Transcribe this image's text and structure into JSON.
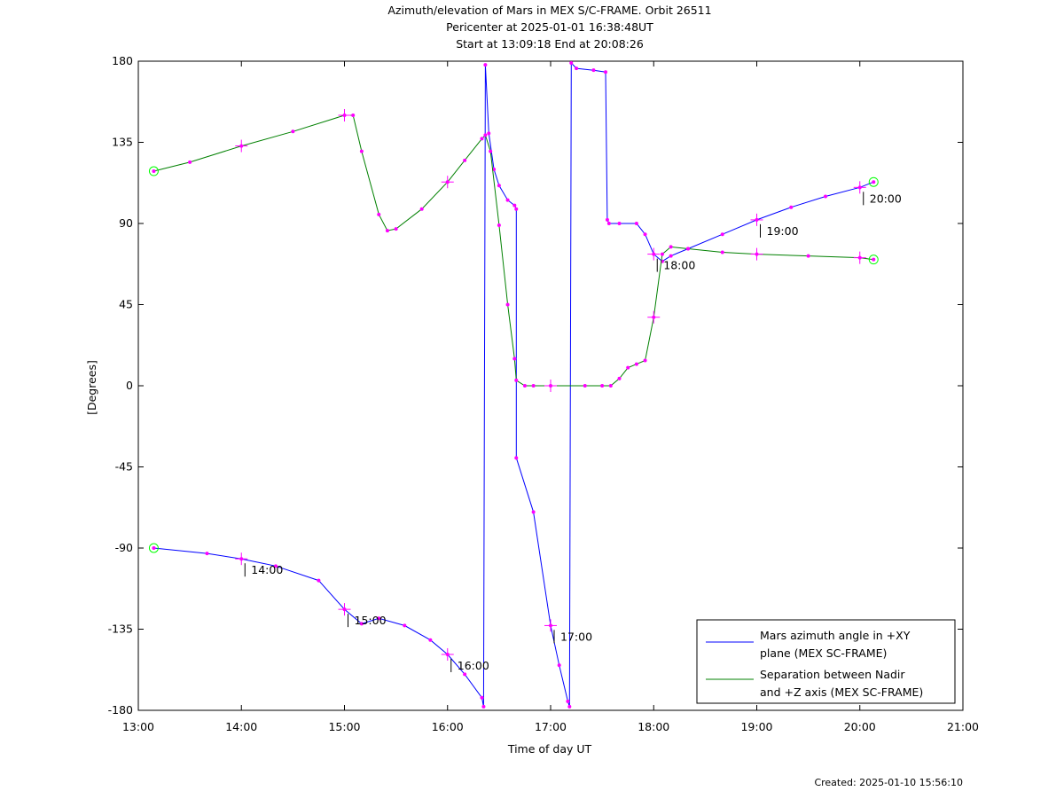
{
  "header": {
    "title": "Azimuth/elevation of Mars in MEX S/C-FRAME.  Orbit 26511",
    "subtitle1": "Pericenter at 2025-01-01 16:38:48UT",
    "subtitle2": "Start at 13:09:18 End at 20:08:26"
  },
  "footer": {
    "created": "Created: 2025-01-10 15:56:10"
  },
  "chart_data": {
    "type": "line",
    "title": "Azimuth/elevation of Mars in MEX S/C-FRAME.  Orbit 26511",
    "xlabel": "Time of day UT",
    "ylabel": "[Degrees]",
    "xlim": [
      "13:00",
      "21:00"
    ],
    "ylim": [
      -180,
      180
    ],
    "x_ticks": [
      "13:00",
      "14:00",
      "15:00",
      "16:00",
      "17:00",
      "18:00",
      "19:00",
      "20:00",
      "21:00"
    ],
    "y_ticks": [
      180,
      135,
      90,
      45,
      0,
      -45,
      -90,
      -135,
      -180
    ],
    "grid": false,
    "legend_position": "bottom-right",
    "colors": {
      "azimuth": "#0000ff",
      "separation": "#008000",
      "markers": "#ff00ff",
      "endpoints": "#00ff00"
    },
    "series": [
      {
        "name": "Mars azimuth angle in +XY plane (MEX SC-FRAME)",
        "legend_lines": [
          "Mars azimuth angle in +XY",
          "plane (MEX SC-FRAME)"
        ],
        "color": "#0000ff",
        "x": [
          "13:09",
          "13:40",
          "14:00",
          "14:20",
          "14:45",
          "15:00",
          "15:10",
          "15:20",
          "15:35",
          "15:50",
          "16:00",
          "16:10",
          "16:20",
          "16:21",
          "16:22",
          "16:24",
          "16:27",
          "16:30",
          "16:35",
          "16:39",
          "16:40",
          "16:40",
          "16:50",
          "17:00",
          "17:05",
          "17:10",
          "17:11",
          "17:12",
          "17:15",
          "17:25",
          "17:32",
          "17:33",
          "17:34",
          "17:40",
          "17:50",
          "17:55",
          "18:00",
          "18:05",
          "18:10",
          "18:20",
          "18:40",
          "19:00",
          "19:20",
          "19:40",
          "20:00",
          "20:08"
        ],
        "y": [
          -90,
          -93,
          -96,
          -100,
          -108,
          -124,
          -132,
          -129,
          -133,
          -141,
          -149,
          -160,
          -173,
          -178,
          178,
          140,
          120,
          111,
          103,
          100,
          98,
          -40,
          -70,
          -133,
          -155,
          -175,
          -178,
          179,
          176,
          175,
          174,
          92,
          90,
          90,
          90,
          84,
          73,
          69,
          72,
          76,
          84,
          92,
          99,
          105,
          110,
          113
        ]
      },
      {
        "name": "Separation between Nadir and +Z axis (MEX SC-FRAME)",
        "legend_lines": [
          "Separation between Nadir",
          "and +Z axis (MEX SC-FRAME)"
        ],
        "color": "#008000",
        "x": [
          "13:09",
          "13:30",
          "14:00",
          "14:30",
          "15:00",
          "15:05",
          "15:10",
          "15:20",
          "15:25",
          "15:30",
          "15:45",
          "16:00",
          "16:10",
          "16:20",
          "16:22",
          "16:25",
          "16:30",
          "16:35",
          "16:39",
          "16:40",
          "16:45",
          "16:50",
          "17:00",
          "17:20",
          "17:30",
          "17:35",
          "17:40",
          "17:45",
          "17:50",
          "17:55",
          "18:00",
          "18:05",
          "18:10",
          "18:20",
          "18:40",
          "19:00",
          "19:30",
          "20:00",
          "20:08"
        ],
        "y": [
          119,
          124,
          133,
          141,
          150,
          150,
          130,
          95,
          86,
          87,
          98,
          113,
          125,
          137,
          139,
          130,
          89,
          45,
          15,
          3,
          0,
          0,
          0,
          0,
          0,
          0,
          4,
          10,
          12,
          14,
          38,
          73,
          77,
          76,
          74,
          73,
          72,
          71,
          70
        ]
      }
    ],
    "time_annotations": [
      "14:00",
      "15:00",
      "16:00",
      "17:00",
      "18:00",
      "19:00",
      "20:00"
    ]
  }
}
